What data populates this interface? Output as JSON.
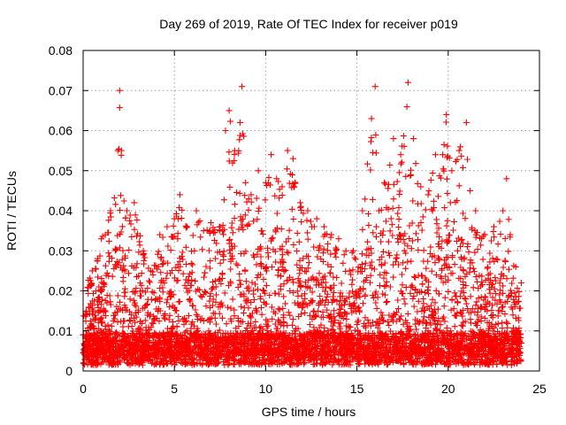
{
  "chart_data": {
    "type": "scatter",
    "title": "Day 269 of 2019, Rate Of TEC Index for receiver p019",
    "xlabel": "GPS time / hours",
    "ylabel": "ROTI / TECUs",
    "xlim": [
      0,
      25
    ],
    "ylim": [
      0,
      0.08
    ],
    "grid": true,
    "marker": "+",
    "color": "#ff0000",
    "x_ticks": [
      0,
      5,
      10,
      15,
      20,
      25
    ],
    "x_tick_labels": [
      "0",
      "5",
      "10",
      "15",
      "20",
      "25"
    ],
    "y_ticks": [
      0,
      0.01,
      0.02,
      0.03,
      0.04,
      0.05,
      0.06,
      0.07,
      0.08
    ],
    "y_tick_labels": [
      "0",
      "0.01",
      "0.02",
      "0.03",
      "0.04",
      "0.05",
      "0.06",
      "0.07",
      "0.08"
    ],
    "series": [
      {
        "name": "ROTI",
        "x_range": [
          0,
          24
        ],
        "baseline": 0.004,
        "envelope": [
          [
            0.0,
            0.02
          ],
          [
            0.5,
            0.025
          ],
          [
            1.0,
            0.033
          ],
          [
            1.5,
            0.04
          ],
          [
            1.9,
            0.055
          ],
          [
            2.0,
            0.07
          ],
          [
            2.1,
            0.055
          ],
          [
            2.4,
            0.04
          ],
          [
            2.8,
            0.042
          ],
          [
            3.3,
            0.03
          ],
          [
            3.7,
            0.025
          ],
          [
            4.2,
            0.034
          ],
          [
            4.6,
            0.036
          ],
          [
            5.0,
            0.038
          ],
          [
            5.3,
            0.044
          ],
          [
            5.7,
            0.036
          ],
          [
            6.2,
            0.04
          ],
          [
            6.6,
            0.035
          ],
          [
            7.0,
            0.037
          ],
          [
            7.5,
            0.036
          ],
          [
            7.8,
            0.06
          ],
          [
            8.0,
            0.065
          ],
          [
            8.3,
            0.055
          ],
          [
            8.6,
            0.062
          ],
          [
            8.7,
            0.071
          ],
          [
            8.9,
            0.047
          ],
          [
            9.2,
            0.044
          ],
          [
            9.6,
            0.05
          ],
          [
            10.0,
            0.047
          ],
          [
            10.3,
            0.054
          ],
          [
            10.6,
            0.048
          ],
          [
            10.9,
            0.046
          ],
          [
            11.2,
            0.055
          ],
          [
            11.5,
            0.053
          ],
          [
            11.9,
            0.042
          ],
          [
            12.3,
            0.04
          ],
          [
            12.8,
            0.038
          ],
          [
            13.2,
            0.036
          ],
          [
            13.6,
            0.034
          ],
          [
            14.0,
            0.033
          ],
          [
            14.4,
            0.03
          ],
          [
            14.8,
            0.03
          ],
          [
            15.3,
            0.04
          ],
          [
            15.8,
            0.063
          ],
          [
            16.0,
            0.071
          ],
          [
            16.2,
            0.04
          ],
          [
            16.5,
            0.047
          ],
          [
            17.0,
            0.058
          ],
          [
            17.4,
            0.054
          ],
          [
            17.8,
            0.072
          ],
          [
            18.1,
            0.058
          ],
          [
            18.5,
            0.046
          ],
          [
            18.9,
            0.044
          ],
          [
            19.3,
            0.054
          ],
          [
            19.7,
            0.054
          ],
          [
            19.9,
            0.064
          ],
          [
            20.2,
            0.05
          ],
          [
            20.6,
            0.055
          ],
          [
            21.0,
            0.062
          ],
          [
            21.2,
            0.045
          ],
          [
            21.5,
            0.04
          ],
          [
            22.0,
            0.034
          ],
          [
            22.5,
            0.036
          ],
          [
            23.0,
            0.04
          ],
          [
            23.2,
            0.048
          ],
          [
            23.4,
            0.034
          ],
          [
            23.7,
            0.026
          ],
          [
            24.0,
            0.022
          ]
        ]
      }
    ]
  }
}
